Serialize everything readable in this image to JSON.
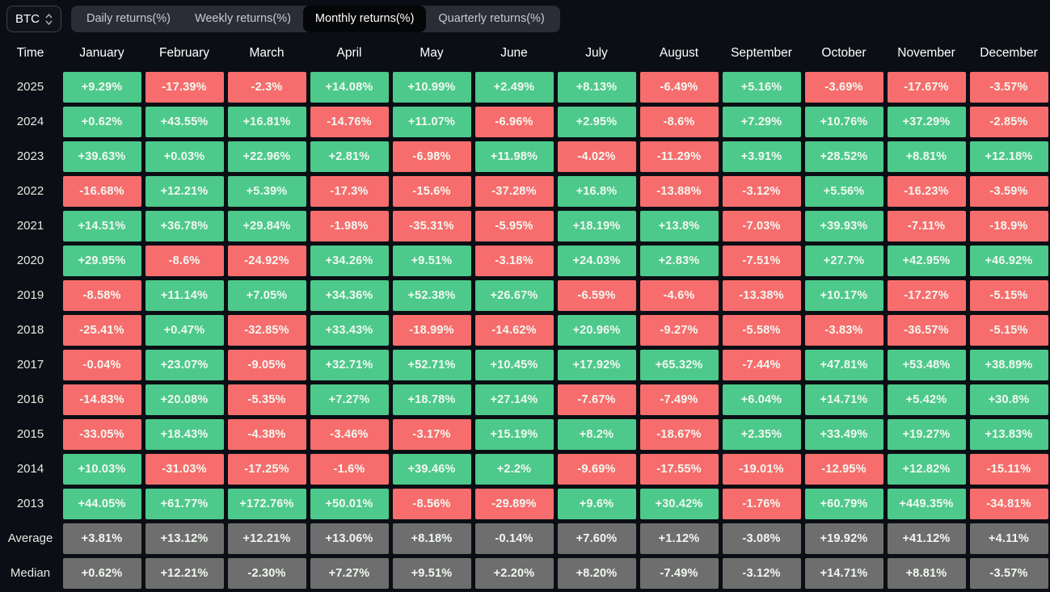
{
  "toolbar": {
    "symbol": "BTC",
    "tabs": [
      {
        "label": "Daily returns(%)",
        "active": false
      },
      {
        "label": "Weekly returns(%)",
        "active": false
      },
      {
        "label": "Monthly returns(%)",
        "active": true
      },
      {
        "label": "Quarterly returns(%)",
        "active": false
      }
    ]
  },
  "colors": {
    "positive": "#4DC98B",
    "negative": "#F76D6D",
    "neutral": "#6E6E6E",
    "background": "#0B0E14",
    "tabbar": "#2A2D35",
    "active_tab": "#050608"
  },
  "chart_data": {
    "type": "heatmap",
    "title": "Monthly returns(%)",
    "row_header": "Time",
    "columns": [
      "January",
      "February",
      "March",
      "April",
      "May",
      "June",
      "July",
      "August",
      "September",
      "October",
      "November",
      "December"
    ],
    "rows": [
      {
        "label": "2025",
        "kind": "year",
        "values": [
          "+9.29%",
          "-17.39%",
          "-2.3%",
          "+14.08%",
          "+10.99%",
          "+2.49%",
          "+8.13%",
          "-6.49%",
          "+5.16%",
          "-3.69%",
          "-17.67%",
          "-3.57%"
        ]
      },
      {
        "label": "2024",
        "kind": "year",
        "values": [
          "+0.62%",
          "+43.55%",
          "+16.81%",
          "-14.76%",
          "+11.07%",
          "-6.96%",
          "+2.95%",
          "-8.6%",
          "+7.29%",
          "+10.76%",
          "+37.29%",
          "-2.85%"
        ]
      },
      {
        "label": "2023",
        "kind": "year",
        "values": [
          "+39.63%",
          "+0.03%",
          "+22.96%",
          "+2.81%",
          "-6.98%",
          "+11.98%",
          "-4.02%",
          "-11.29%",
          "+3.91%",
          "+28.52%",
          "+8.81%",
          "+12.18%"
        ]
      },
      {
        "label": "2022",
        "kind": "year",
        "values": [
          "-16.68%",
          "+12.21%",
          "+5.39%",
          "-17.3%",
          "-15.6%",
          "-37.28%",
          "+16.8%",
          "-13.88%",
          "-3.12%",
          "+5.56%",
          "-16.23%",
          "-3.59%"
        ]
      },
      {
        "label": "2021",
        "kind": "year",
        "values": [
          "+14.51%",
          "+36.78%",
          "+29.84%",
          "-1.98%",
          "-35.31%",
          "-5.95%",
          "+18.19%",
          "+13.8%",
          "-7.03%",
          "+39.93%",
          "-7.11%",
          "-18.9%"
        ]
      },
      {
        "label": "2020",
        "kind": "year",
        "values": [
          "+29.95%",
          "-8.6%",
          "-24.92%",
          "+34.26%",
          "+9.51%",
          "-3.18%",
          "+24.03%",
          "+2.83%",
          "-7.51%",
          "+27.7%",
          "+42.95%",
          "+46.92%"
        ]
      },
      {
        "label": "2019",
        "kind": "year",
        "values": [
          "-8.58%",
          "+11.14%",
          "+7.05%",
          "+34.36%",
          "+52.38%",
          "+26.67%",
          "-6.59%",
          "-4.6%",
          "-13.38%",
          "+10.17%",
          "-17.27%",
          "-5.15%"
        ]
      },
      {
        "label": "2018",
        "kind": "year",
        "values": [
          "-25.41%",
          "+0.47%",
          "-32.85%",
          "+33.43%",
          "-18.99%",
          "-14.62%",
          "+20.96%",
          "-9.27%",
          "-5.58%",
          "-3.83%",
          "-36.57%",
          "-5.15%"
        ]
      },
      {
        "label": "2017",
        "kind": "year",
        "values": [
          "-0.04%",
          "+23.07%",
          "-9.05%",
          "+32.71%",
          "+52.71%",
          "+10.45%",
          "+17.92%",
          "+65.32%",
          "-7.44%",
          "+47.81%",
          "+53.48%",
          "+38.89%"
        ]
      },
      {
        "label": "2016",
        "kind": "year",
        "values": [
          "-14.83%",
          "+20.08%",
          "-5.35%",
          "+7.27%",
          "+18.78%",
          "+27.14%",
          "-7.67%",
          "-7.49%",
          "+6.04%",
          "+14.71%",
          "+5.42%",
          "+30.8%"
        ]
      },
      {
        "label": "2015",
        "kind": "year",
        "values": [
          "-33.05%",
          "+18.43%",
          "-4.38%",
          "-3.46%",
          "-3.17%",
          "+15.19%",
          "+8.2%",
          "-18.67%",
          "+2.35%",
          "+33.49%",
          "+19.27%",
          "+13.83%"
        ]
      },
      {
        "label": "2014",
        "kind": "year",
        "values": [
          "+10.03%",
          "-31.03%",
          "-17.25%",
          "-1.6%",
          "+39.46%",
          "+2.2%",
          "-9.69%",
          "-17.55%",
          "-19.01%",
          "-12.95%",
          "+12.82%",
          "-15.11%"
        ]
      },
      {
        "label": "2013",
        "kind": "year",
        "values": [
          "+44.05%",
          "+61.77%",
          "+172.76%",
          "+50.01%",
          "-8.56%",
          "-29.89%",
          "+9.6%",
          "+30.42%",
          "-1.76%",
          "+60.79%",
          "+449.35%",
          "-34.81%"
        ]
      },
      {
        "label": "Average",
        "kind": "summary",
        "values": [
          "+3.81%",
          "+13.12%",
          "+12.21%",
          "+13.06%",
          "+8.18%",
          "-0.14%",
          "+7.60%",
          "+1.12%",
          "-3.08%",
          "+19.92%",
          "+41.12%",
          "+4.11%"
        ]
      },
      {
        "label": "Median",
        "kind": "summary",
        "values": [
          "+0.62%",
          "+12.21%",
          "-2.30%",
          "+7.27%",
          "+9.51%",
          "+2.20%",
          "+8.20%",
          "-7.49%",
          "-3.12%",
          "+14.71%",
          "+8.81%",
          "-3.57%"
        ]
      }
    ]
  }
}
